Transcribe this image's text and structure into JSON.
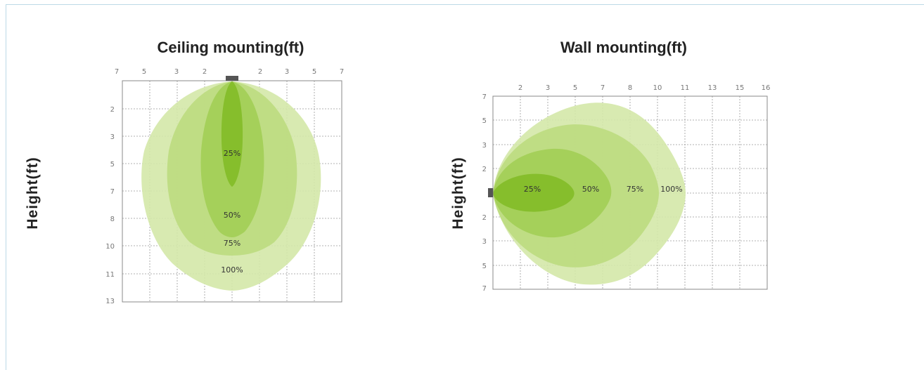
{
  "diagrams": [
    {
      "id": "ceiling",
      "title": "Ceiling mounting(ft)",
      "ylabel": "Height(ft)",
      "top_ticks": [
        "7",
        "5",
        "3",
        "2",
        "",
        "2",
        "3",
        "5",
        "7"
      ],
      "left_ticks": [
        "2",
        "3",
        "5",
        "7",
        "8",
        "10",
        "11",
        "13"
      ],
      "zones": [
        {
          "label": "100%",
          "color": "#d4e8a8"
        },
        {
          "label": "75%",
          "color": "#bcdc80"
        },
        {
          "label": "50%",
          "color": "#a3cf57"
        },
        {
          "label": "25%",
          "color": "#84bd2a"
        }
      ],
      "fixture_color": "#555555"
    },
    {
      "id": "wall",
      "title": "Wall mounting(ft)",
      "ylabel": "Height(ft)",
      "top_ticks": [
        "2",
        "3",
        "5",
        "7",
        "8",
        "10",
        "11",
        "13",
        "15",
        "16"
      ],
      "left_ticks": [
        "7",
        "5",
        "3",
        "2",
        "",
        "2",
        "3",
        "5",
        "7"
      ],
      "zones": [
        {
          "label": "100%",
          "color": "#d4e8a8"
        },
        {
          "label": "75%",
          "color": "#bcdc80"
        },
        {
          "label": "50%",
          "color": "#a3cf57"
        },
        {
          "label": "25%",
          "color": "#84bd2a"
        }
      ],
      "fixture_color": "#555555"
    }
  ]
}
